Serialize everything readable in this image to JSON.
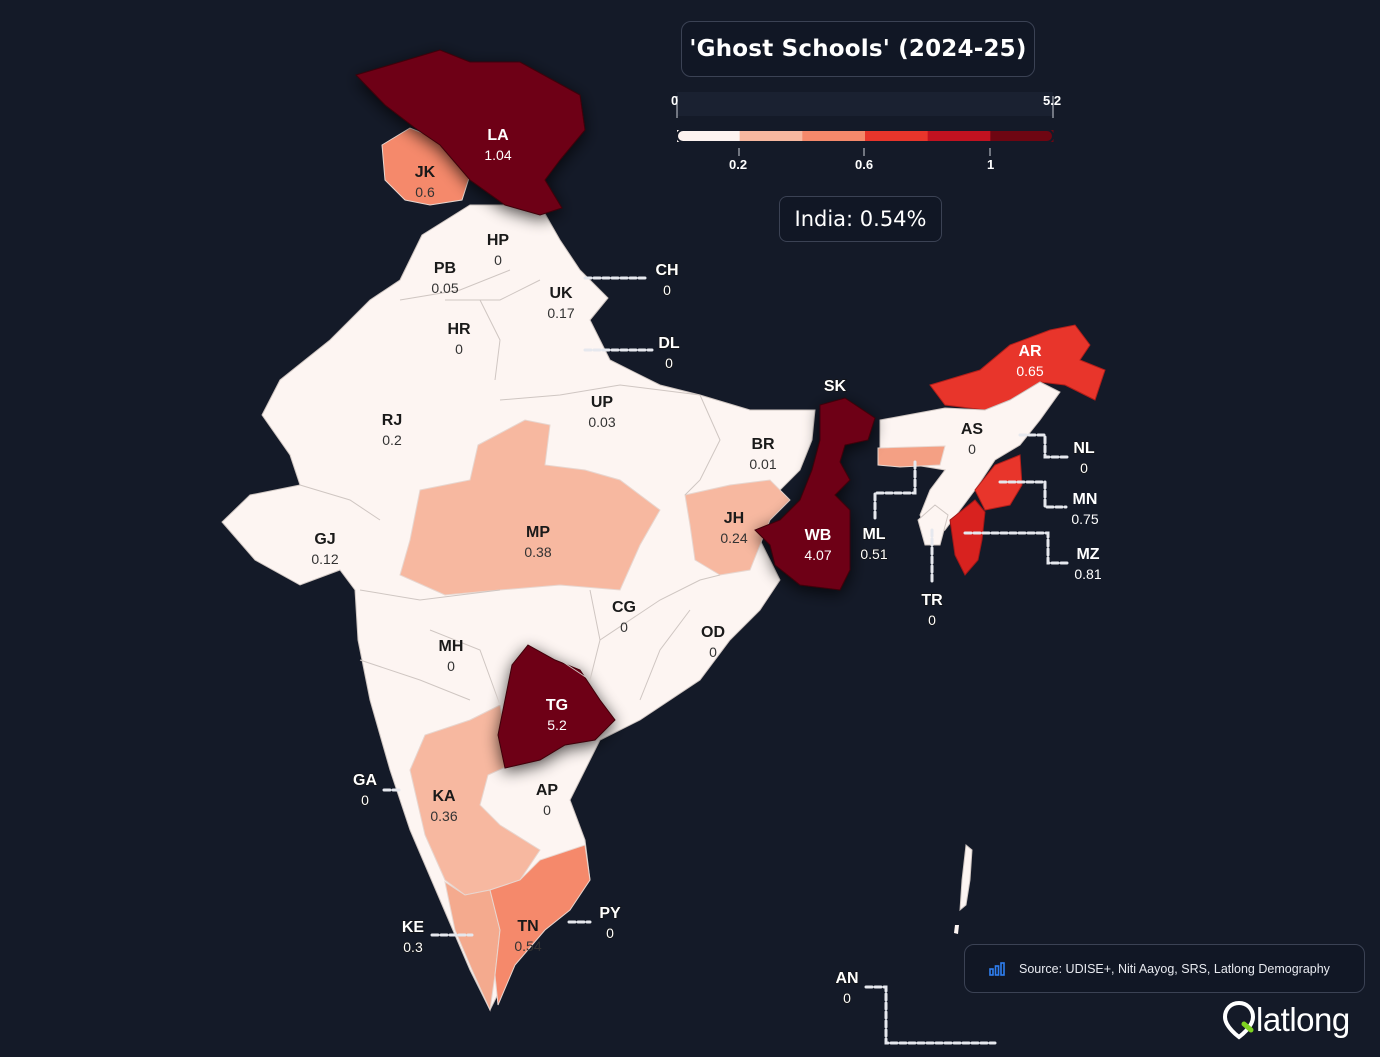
{
  "title": "'Ghost Schools' (2024-25)",
  "india_label": "India: 0.54%",
  "legend": {
    "min": "0",
    "max": "5.2",
    "ticks": [
      "0.2",
      "0.6",
      "1"
    ],
    "colors": [
      "#fdf3f0",
      "#f7b8a0",
      "#f5896b",
      "#e8352b",
      "#c11220",
      "#6e0612"
    ]
  },
  "source": "Source: UDISE+, Niti Aayog, SRS, Latlong Demography",
  "logo": "latlong",
  "icons": {
    "source": "bar-chart-icon",
    "logo": "location-pin-icon"
  },
  "states": [
    {
      "code": "LA",
      "value": "1.04"
    },
    {
      "code": "JK",
      "value": "0.6"
    },
    {
      "code": "HP",
      "value": "0"
    },
    {
      "code": "PB",
      "value": "0.05"
    },
    {
      "code": "CH",
      "value": "0"
    },
    {
      "code": "UK",
      "value": "0.17"
    },
    {
      "code": "HR",
      "value": "0"
    },
    {
      "code": "DL",
      "value": "0"
    },
    {
      "code": "RJ",
      "value": "0.2"
    },
    {
      "code": "UP",
      "value": "0.03"
    },
    {
      "code": "BR",
      "value": "0.01"
    },
    {
      "code": "SK",
      "value": ""
    },
    {
      "code": "AR",
      "value": "0.65"
    },
    {
      "code": "AS",
      "value": "0"
    },
    {
      "code": "NL",
      "value": "0"
    },
    {
      "code": "MN",
      "value": "0.75"
    },
    {
      "code": "MZ",
      "value": "0.81"
    },
    {
      "code": "ML",
      "value": "0.51"
    },
    {
      "code": "TR",
      "value": "0"
    },
    {
      "code": "GJ",
      "value": "0.12"
    },
    {
      "code": "MP",
      "value": "0.38"
    },
    {
      "code": "JH",
      "value": "0.24"
    },
    {
      "code": "WB",
      "value": "4.07"
    },
    {
      "code": "CG",
      "value": "0"
    },
    {
      "code": "OD",
      "value": "0"
    },
    {
      "code": "MH",
      "value": "0"
    },
    {
      "code": "TG",
      "value": "5.2"
    },
    {
      "code": "GA",
      "value": "0"
    },
    {
      "code": "KA",
      "value": "0.36"
    },
    {
      "code": "AP",
      "value": "0"
    },
    {
      "code": "KE",
      "value": "0.3"
    },
    {
      "code": "TN",
      "value": "0.54"
    },
    {
      "code": "PY",
      "value": "0"
    },
    {
      "code": "AN",
      "value": "0"
    }
  ]
}
